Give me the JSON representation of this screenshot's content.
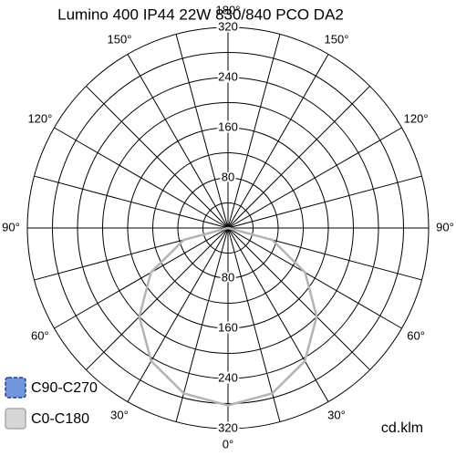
{
  "chart_data": {
    "type": "polar",
    "title": "Lumino 400 IP44 22W 830/840 PCO DA2",
    "unit": "cd.klm",
    "angles": [
      -90,
      -75,
      -60,
      -45,
      -30,
      -15,
      0,
      15,
      30,
      45,
      60,
      75,
      90
    ],
    "series": [
      {
        "name": "C90-C270",
        "color": "#4a74c9",
        "values": [
          0,
          73,
          142,
          200,
          245,
          273,
          283,
          273,
          245,
          200,
          142,
          73,
          0
        ]
      },
      {
        "name": "C0-C180",
        "color": "#b4b4b4",
        "values": [
          0,
          73,
          142,
          200,
          245,
          273,
          283,
          273,
          245,
          200,
          142,
          73,
          0
        ]
      }
    ],
    "rlim": [
      0,
      320
    ],
    "rticks": [
      80,
      160,
      240,
      320
    ],
    "angle_ticks": [
      {
        "value": 0,
        "label": "0°"
      },
      {
        "value": 30,
        "label": "30°"
      },
      {
        "value": -30,
        "label": "30°"
      },
      {
        "value": 60,
        "label": "60°"
      },
      {
        "value": -60,
        "label": "60°"
      },
      {
        "value": 90,
        "label": "90°"
      },
      {
        "value": -90,
        "label": "90°"
      },
      {
        "value": 120,
        "label": "120°"
      },
      {
        "value": -120,
        "label": "120°"
      },
      {
        "value": 150,
        "label": "150°"
      },
      {
        "value": -150,
        "label": "150°"
      },
      {
        "value": 180,
        "label": "180°"
      }
    ]
  }
}
